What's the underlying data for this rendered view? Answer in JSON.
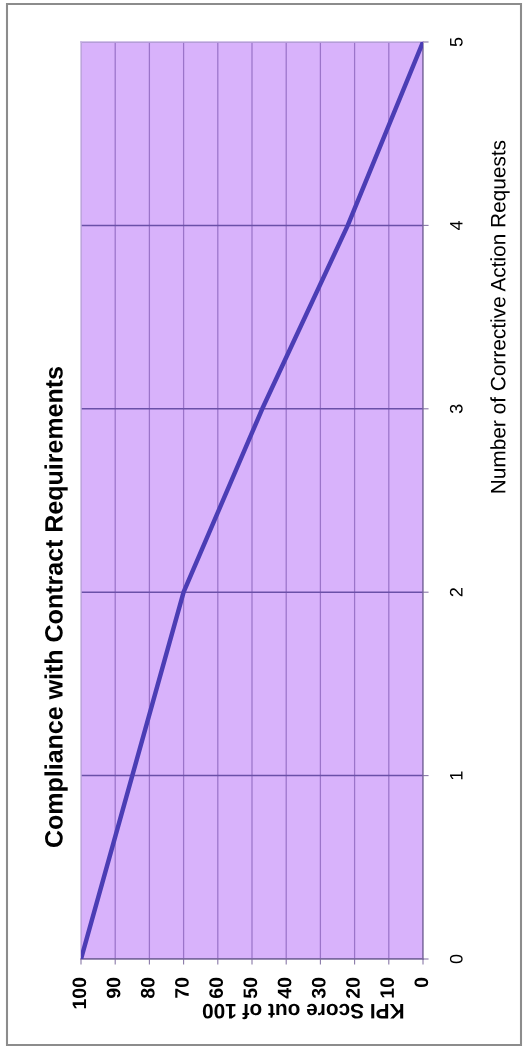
{
  "chart_data": {
    "type": "line",
    "title": "Compliance with Contract Requirements",
    "xlabel": "KPI Score out of 100",
    "ylabel": "Number of Corrective Action Requests",
    "x": [
      100,
      85,
      70,
      47,
      22,
      0
    ],
    "series": [
      {
        "color": "#4b3db5",
        "values": [
          0,
          1,
          2,
          3,
          4,
          5
        ]
      }
    ],
    "xlim": [
      100,
      0
    ],
    "xticks": [
      100,
      90,
      80,
      70,
      60,
      50,
      40,
      30,
      20,
      10,
      0
    ],
    "ylim": [
      0,
      5
    ],
    "yticks": [
      0,
      1,
      2,
      3,
      4,
      5
    ],
    "grid": true,
    "line_style": "solid"
  }
}
